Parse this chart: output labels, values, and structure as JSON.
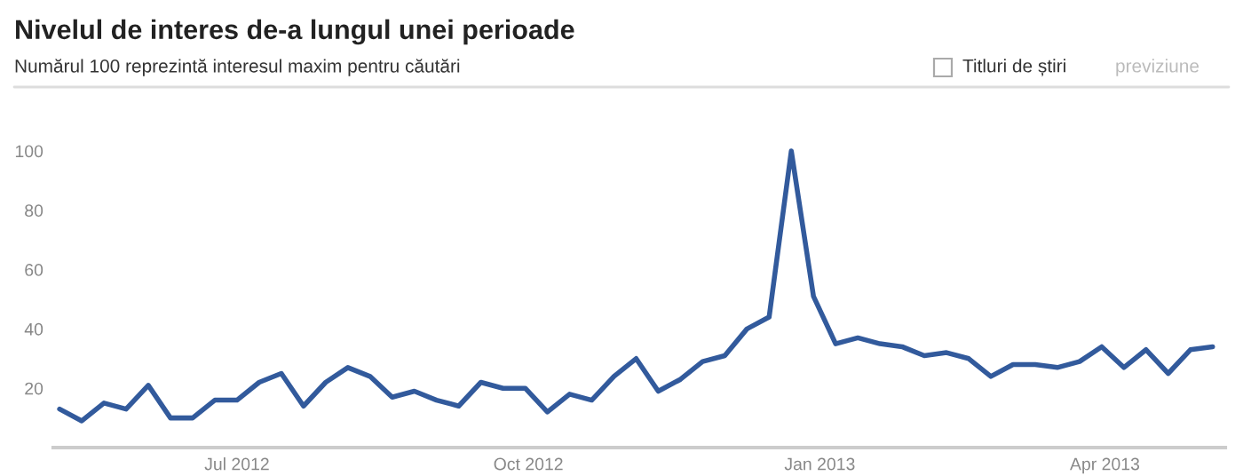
{
  "chart_data": {
    "type": "line",
    "title": "Nivelul de interes de-a lungul unei perioade",
    "subtitle": "Numărul 100 reprezintă interesul maxim pentru căutări",
    "annotations": [
      "Titluri de știri",
      "previziune"
    ],
    "x": [
      "2012-05-06",
      "2012-05-13",
      "2012-05-20",
      "2012-05-27",
      "2012-06-03",
      "2012-06-10",
      "2012-06-17",
      "2012-06-24",
      "2012-07-01",
      "2012-07-08",
      "2012-07-15",
      "2012-07-22",
      "2012-07-29",
      "2012-08-05",
      "2012-08-12",
      "2012-08-19",
      "2012-08-26",
      "2012-09-02",
      "2012-09-09",
      "2012-09-16",
      "2012-09-23",
      "2012-09-30",
      "2012-10-07",
      "2012-10-14",
      "2012-10-21",
      "2012-10-28",
      "2012-11-04",
      "2012-11-11",
      "2012-11-18",
      "2012-11-25",
      "2012-12-02",
      "2012-12-09",
      "2012-12-16",
      "2012-12-23",
      "2012-12-30",
      "2013-01-06",
      "2013-01-13",
      "2013-01-20",
      "2013-01-27",
      "2013-02-03",
      "2013-02-10",
      "2013-02-17",
      "2013-02-24",
      "2013-03-03",
      "2013-03-10",
      "2013-03-17",
      "2013-03-24",
      "2013-03-31",
      "2013-04-07",
      "2013-04-14",
      "2013-04-21",
      "2013-04-28",
      "2013-05-05"
    ],
    "series": [
      {
        "color": "#325a9c",
        "values": [
          13,
          9,
          15,
          13,
          21,
          10,
          10,
          16,
          16,
          22,
          25,
          14,
          22,
          27,
          24,
          17,
          19,
          16,
          14,
          22,
          20,
          20,
          12,
          18,
          16,
          24,
          30,
          19,
          23,
          29,
          31,
          40,
          44,
          100,
          51,
          35,
          37,
          35,
          34,
          31,
          32,
          30,
          24,
          28,
          28,
          27,
          29,
          34,
          27,
          33,
          25,
          33,
          34
        ]
      }
    ],
    "xlim": [
      "2012-05-04",
      "2013-05-09"
    ],
    "xticks": [
      {
        "value": "2012-07-01",
        "label": "Jul 2012"
      },
      {
        "value": "2012-10-01",
        "label": "Oct 2012"
      },
      {
        "value": "2013-01-01",
        "label": "Jan 2013"
      },
      {
        "value": "2013-04-01",
        "label": "Apr 2013"
      }
    ],
    "ylim": [
      0,
      100
    ],
    "yticks": [
      20,
      40,
      60,
      80,
      100
    ],
    "grid": false,
    "legend": false,
    "marker": "none",
    "line_style": "solid"
  }
}
